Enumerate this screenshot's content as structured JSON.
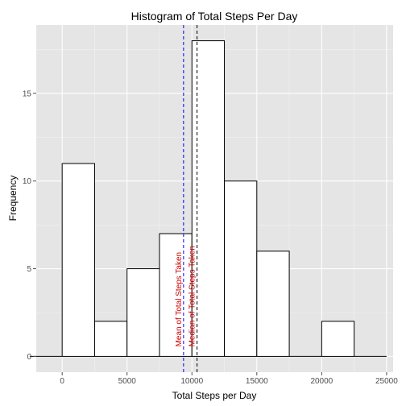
{
  "chart_data": {
    "type": "bar",
    "title": "Histogram of Total Steps Per Day",
    "xlabel": "Total Steps per Day",
    "ylabel": "Frequency",
    "xlim": [
      -2500,
      25000
    ],
    "ylim": [
      -0.9,
      18.9
    ],
    "x_ticks": [
      0,
      5000,
      10000,
      15000,
      20000,
      25000
    ],
    "y_ticks": [
      0,
      5,
      10,
      15
    ],
    "bin_width": 2500,
    "bins": [
      {
        "start": -2500,
        "end": 0,
        "count": 0
      },
      {
        "start": 0,
        "end": 2500,
        "count": 11
      },
      {
        "start": 2500,
        "end": 5000,
        "count": 2
      },
      {
        "start": 5000,
        "end": 7500,
        "count": 5
      },
      {
        "start": 7500,
        "end": 10000,
        "count": 7
      },
      {
        "start": 10000,
        "end": 12500,
        "count": 18
      },
      {
        "start": 12500,
        "end": 15000,
        "count": 10
      },
      {
        "start": 15000,
        "end": 17500,
        "count": 6
      },
      {
        "start": 17500,
        "end": 20000,
        "count": 0
      },
      {
        "start": 20000,
        "end": 22500,
        "count": 2
      },
      {
        "start": 22500,
        "end": 25000,
        "count": 0
      }
    ],
    "vlines": [
      {
        "x": 9354,
        "label": "Mean of Total Steps Taken",
        "color": "#0000ff"
      },
      {
        "x": 10395,
        "label": "Median of Total Steps Taken",
        "color": "#000000"
      }
    ],
    "grid": true,
    "colors": {
      "panel_bg": "#e5e5e5",
      "grid_major": "#ffffff",
      "grid_minor": "#f2f2f2",
      "bar_fill": "#ffffff",
      "bar_stroke": "#000000",
      "annotation": "#cc0000"
    }
  }
}
